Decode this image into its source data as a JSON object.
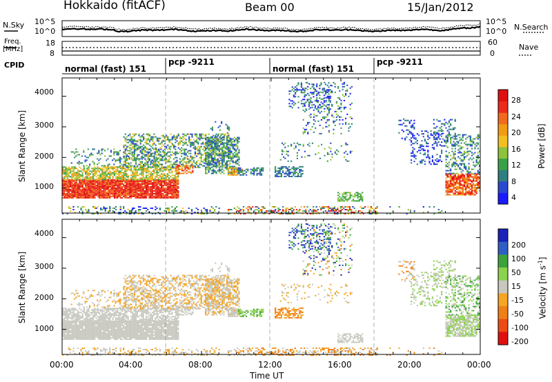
{
  "header": {
    "station": "Hokkaido (fitACF)",
    "beam": "Beam 00",
    "date": "15/Jan/2012"
  },
  "params": {
    "nsky_label": "N.Sky",
    "nsearch_label": "N.Search",
    "freq_label_1": "Freq.",
    "freq_label_2": "[MHz]",
    "cpid_label": "CPID",
    "nave_label": "Nave",
    "noise_ticks": [
      "10^5",
      "10^0"
    ],
    "freq_ticks": [
      "18",
      "8"
    ],
    "nave_ticks": [
      "60",
      "0"
    ]
  },
  "cpid": [
    "normal (fast) 151",
    "pcp -9211",
    "normal (fast) 151",
    "pcp -9211"
  ],
  "chart_data": [
    {
      "type": "heatmap",
      "panel": "power",
      "ylabel": "Slant Range [km]",
      "x_ticks": [
        "00:00",
        "04:00",
        "08:00",
        "12:00",
        "16:00",
        "20:00",
        "00:00"
      ],
      "y_ticks": [
        "1000",
        "2000",
        "3000",
        "4000"
      ],
      "ylim": [
        180,
        4600
      ],
      "xlim_hours": [
        0,
        24
      ],
      "colorbar": {
        "label": "Power [dB]",
        "ticks": [
          "4",
          "8",
          "12",
          "16",
          "20",
          "24",
          "28"
        ],
        "range": [
          0,
          31
        ]
      }
    },
    {
      "type": "heatmap",
      "panel": "velocity",
      "ylabel": "Slant Range [km]",
      "xlabel": "Time UT",
      "x_ticks": [
        "00:00",
        "04:00",
        "08:00",
        "12:00",
        "16:00",
        "20:00",
        "00:00"
      ],
      "y_ticks": [
        "1000",
        "2000",
        "3000",
        "4000"
      ],
      "ylim": [
        180,
        4600
      ],
      "xlim_hours": [
        0,
        24
      ],
      "colorbar": {
        "label": "Velocity [m s",
        "label_exp": "-1",
        "label_end": "]",
        "ticks": [
          "200",
          "100",
          "50",
          "15",
          "-15",
          "-50",
          "-100",
          "-200"
        ]
      }
    }
  ],
  "colors": {
    "power_scale": [
      "#1a1aff",
      "#2a48d0",
      "#2e7f7f",
      "#3aa048",
      "#8cc23c",
      "#f0c020",
      "#f39c12",
      "#f26b1c",
      "#ee2a1b",
      "#e01010"
    ],
    "velocity_scale": [
      "#1a22b8",
      "#2f5fc4",
      "#3ca33c",
      "#8cd24c",
      "#c8c8c0",
      "#f5a623",
      "#f07f16",
      "#ee4a14",
      "#e01010"
    ]
  }
}
